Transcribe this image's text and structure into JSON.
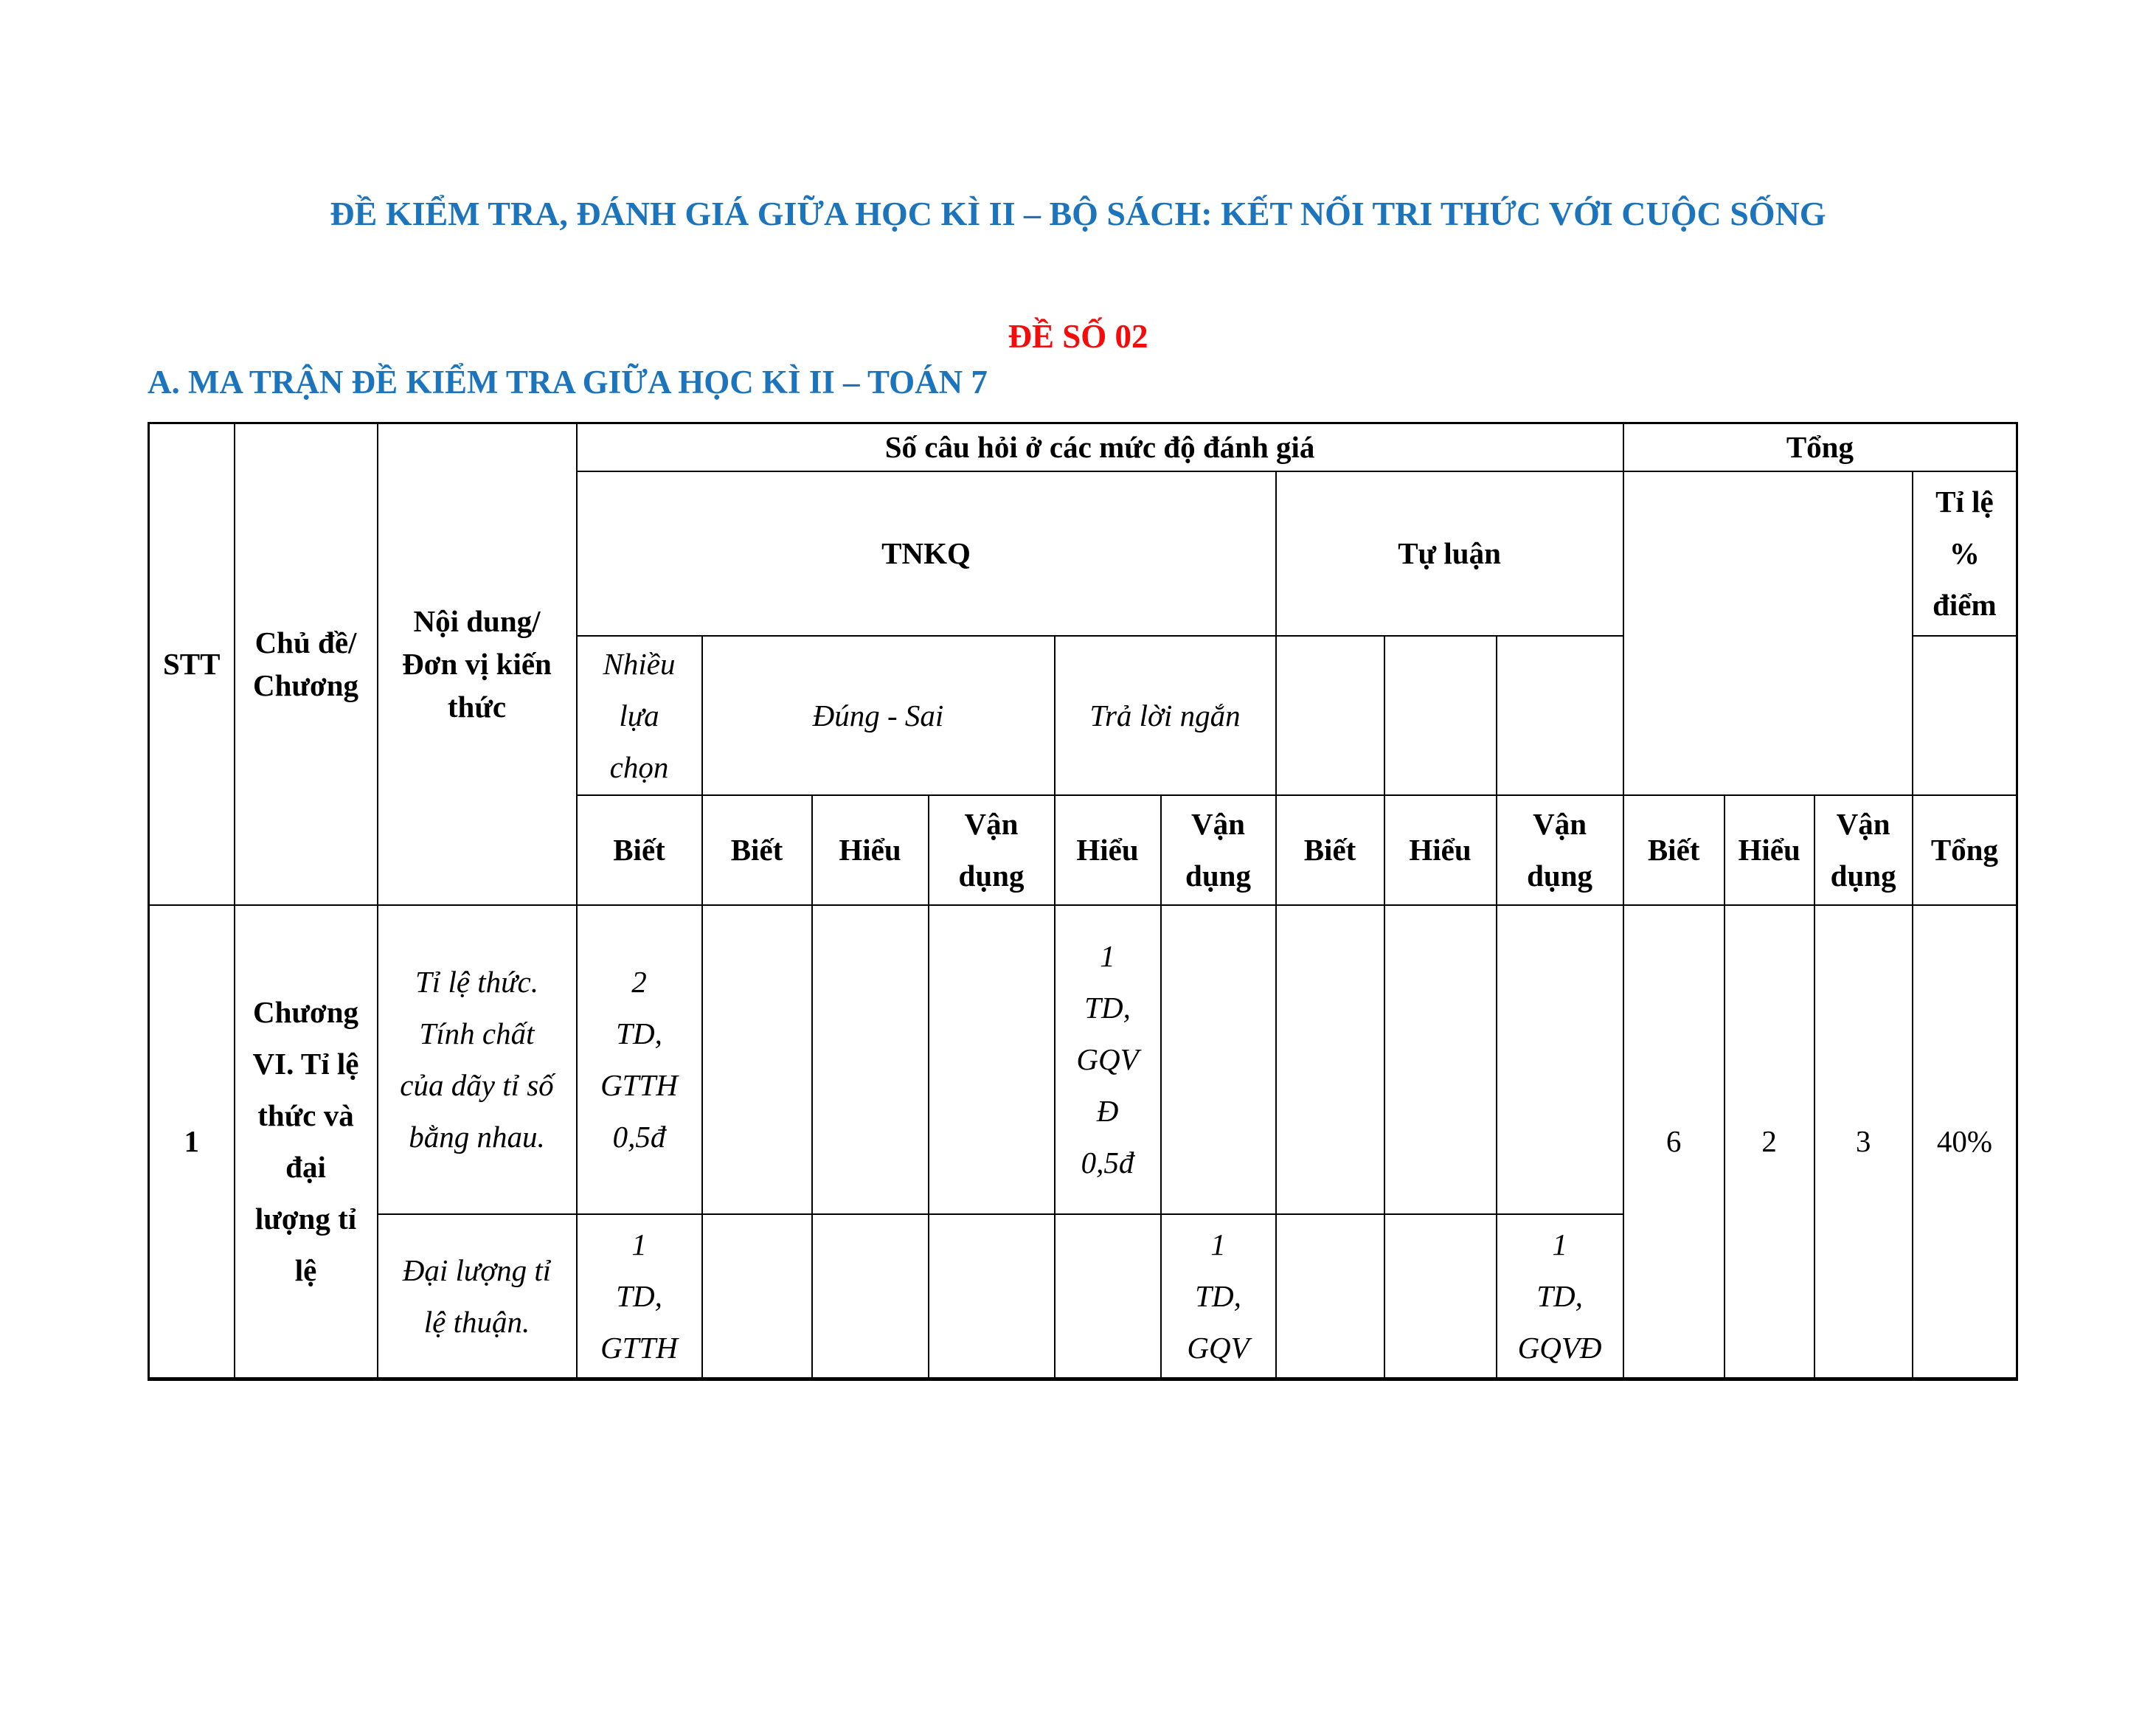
{
  "page": {
    "title": "ĐỀ KIỂM TRA, ĐÁNH GIÁ GIỮA HỌC KÌ II – BỘ SÁCH: KẾT NỐI TRI THỨC VỚI CUỘC SỐNG",
    "subtitle": "ĐỀ SỐ 02",
    "section_heading": "A. MA TRẬN ĐỀ KIỂM TRA GIỮA HỌC KÌ II – TOÁN 7",
    "colors": {
      "heading_blue": "#1B74BC",
      "subtitle_red": "#F40B0B",
      "body_text": "#000000",
      "table_border": "#000000",
      "page_background": "#FFFFFF"
    }
  },
  "table": {
    "header": {
      "stt": "STT",
      "chu_de": {
        "lines": [
          "Chủ đề/",
          "Chương"
        ]
      },
      "noi_dung": {
        "lines": [
          "Nội dung/",
          "Đơn vị kiến",
          "thức"
        ]
      },
      "so_cau_hoi": "Số câu hỏi ở các mức độ đánh giá",
      "tong_group": "Tổng",
      "tnkq": "TNKQ",
      "tu_luan": "Tự luận",
      "ti_le": {
        "lines": [
          "Tỉ lệ",
          "%",
          "điểm"
        ]
      },
      "nhieu_lua_chon": {
        "lines": [
          "Nhiều",
          "lựa",
          "chọn"
        ]
      },
      "dung_sai": "Đúng - Sai",
      "tra_loi_ngan": "Trả lời ngắn",
      "biet": "Biết",
      "hieu": "Hiểu",
      "van_dung": {
        "lines": [
          "Vận",
          "dụng"
        ]
      },
      "tong_col": "Tổng"
    },
    "body": {
      "stt": "1",
      "chuong": {
        "lines": [
          "Chương",
          "VI. Tỉ lệ",
          "thức và",
          "đại",
          "lượng tỉ",
          "lệ"
        ]
      },
      "row1": {
        "noi_dung": {
          "lines": [
            "Tỉ lệ thức.",
            "Tính chất",
            "của dãy tỉ số",
            "bằng nhau."
          ]
        },
        "nlc_biet": {
          "lines": [
            "2",
            "TD,",
            "GTTH",
            "0,5đ"
          ]
        },
        "tln_hieu": {
          "lines": [
            "1",
            "TD,",
            "GQV",
            "Đ",
            "0,5đ"
          ]
        },
        "tong_biet": "6",
        "tong_hieu": "2",
        "tong_van_dung": "3",
        "ti_le_diem": "40%"
      },
      "row2": {
        "noi_dung": {
          "lines": [
            "Đại lượng tỉ",
            "lệ thuận."
          ]
        },
        "nlc_biet": {
          "lines": [
            "1",
            "TD,",
            "GTTH"
          ]
        },
        "tln_van_dung": {
          "lines": [
            "1",
            "TD,",
            "GQV"
          ]
        },
        "tl_van_dung": {
          "lines": [
            "1",
            "TD,",
            "GQVĐ"
          ]
        }
      }
    }
  }
}
